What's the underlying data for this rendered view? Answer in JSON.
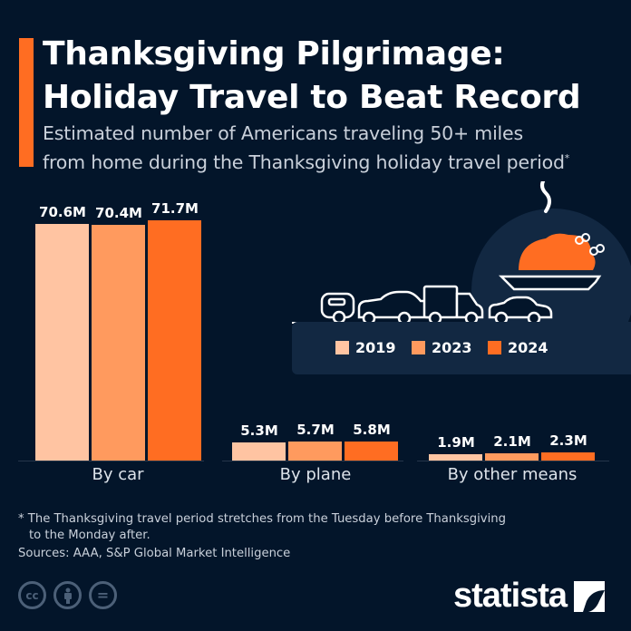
{
  "header": {
    "title_line1": "Thanksgiving Pilgrimage:",
    "title_line2": "Holiday Travel to Beat Record",
    "subtitle_line1": "Estimated number of Americans traveling 50+ miles",
    "subtitle_line2": "from home during the Thanksgiving holiday travel period",
    "subtitle_mark": "*"
  },
  "colors": {
    "background": "#03152a",
    "accent": "#ff6d22",
    "series_2019": "#ffc4a2",
    "series_2023": "#ff9a5e",
    "series_2024": "#ff6d22",
    "legend_panel": "#122842"
  },
  "legend": {
    "items": [
      {
        "label": "2019",
        "color": "#ffc4a2"
      },
      {
        "label": "2023",
        "color": "#ff9a5e"
      },
      {
        "label": "2024",
        "color": "#ff6d22"
      }
    ]
  },
  "chart_data": {
    "type": "bar",
    "title": "Thanksgiving Pilgrimage: Holiday Travel to Beat Record",
    "subtitle": "Estimated number of Americans traveling 50+ miles from home during the Thanksgiving holiday travel period*",
    "categories": [
      "By car",
      "By plane",
      "By other means"
    ],
    "series": [
      {
        "name": "2019",
        "values": [
          70.6,
          5.3,
          1.9
        ],
        "labels": [
          "70.6M",
          "5.3M",
          "1.9M"
        ]
      },
      {
        "name": "2023",
        "values": [
          70.4,
          5.7,
          2.1
        ],
        "labels": [
          "70.4M",
          "5.7M",
          "2.1M"
        ]
      },
      {
        "name": "2024",
        "values": [
          71.7,
          5.8,
          2.3
        ],
        "labels": [
          "71.7M",
          "5.8M",
          "2.3M"
        ]
      }
    ],
    "unit": "millions of travelers",
    "xlabel": "",
    "ylabel": "",
    "ylim": [
      0,
      72
    ],
    "grid": false,
    "legend_position": "right, inside panel"
  },
  "footer": {
    "footnote_line1": "* The Thanksgiving travel period stretches from the Tuesday before Thanksgiving",
    "footnote_line2": "to the Monday after.",
    "sources": "Sources: AAA, S&P Global Market Intelligence",
    "license_icons": [
      "cc-icon",
      "attribution-icon",
      "no-derivatives-icon"
    ],
    "license_glyphs": {
      "cc": "cc",
      "nd": "="
    },
    "brand": "statista"
  }
}
